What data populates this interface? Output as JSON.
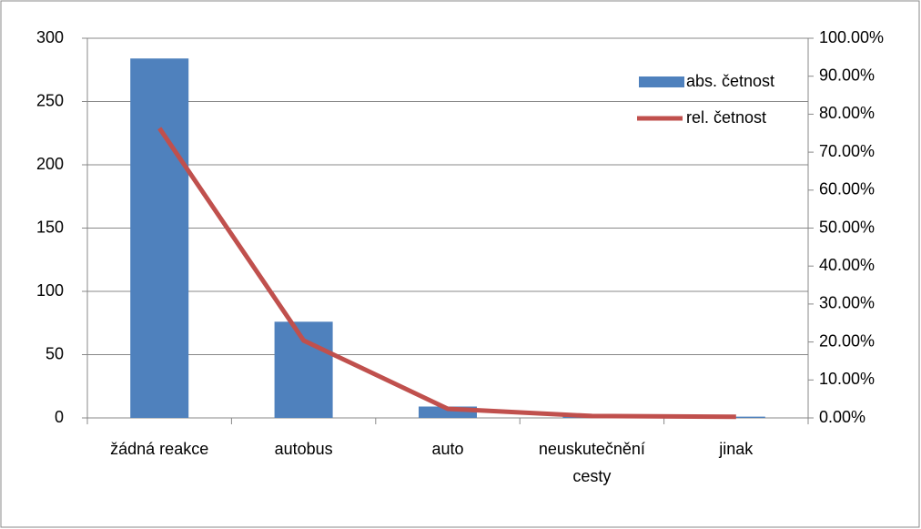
{
  "chart_data": {
    "type": "bar",
    "categories": [
      "žádná reakce",
      "autobus",
      "auto",
      "neuskutečnění cesty",
      "jinak"
    ],
    "series": [
      {
        "name": "abs. četnost",
        "type": "bar",
        "color": "#4f81bd",
        "values": [
          284,
          76,
          9,
          2,
          1
        ]
      },
      {
        "name": "rel. četnost",
        "type": "line",
        "axis": "y2",
        "color": "#c0504d",
        "values": [
          76.3,
          20.4,
          2.4,
          0.5,
          0.3
        ]
      }
    ],
    "ylim": [
      0,
      300
    ],
    "yticks": [
      0,
      50,
      100,
      150,
      200,
      250,
      300
    ],
    "y2lim": [
      0,
      100
    ],
    "y2ticks": [
      {
        "value": 0,
        "label": "0.00%"
      },
      {
        "value": 10,
        "label": "10.00%"
      },
      {
        "value": 20,
        "label": "20.00%"
      },
      {
        "value": 30,
        "label": "30.00%"
      },
      {
        "value": 40,
        "label": "40.00%"
      },
      {
        "value": 50,
        "label": "50.00%"
      },
      {
        "value": 60,
        "label": "60.00%"
      },
      {
        "value": 70,
        "label": "70.00%"
      },
      {
        "value": 80,
        "label": "80.00%"
      },
      {
        "value": 90,
        "label": "90.00%"
      },
      {
        "value": 100,
        "label": "100.00%"
      }
    ],
    "grid": true,
    "legend": "top-right"
  }
}
